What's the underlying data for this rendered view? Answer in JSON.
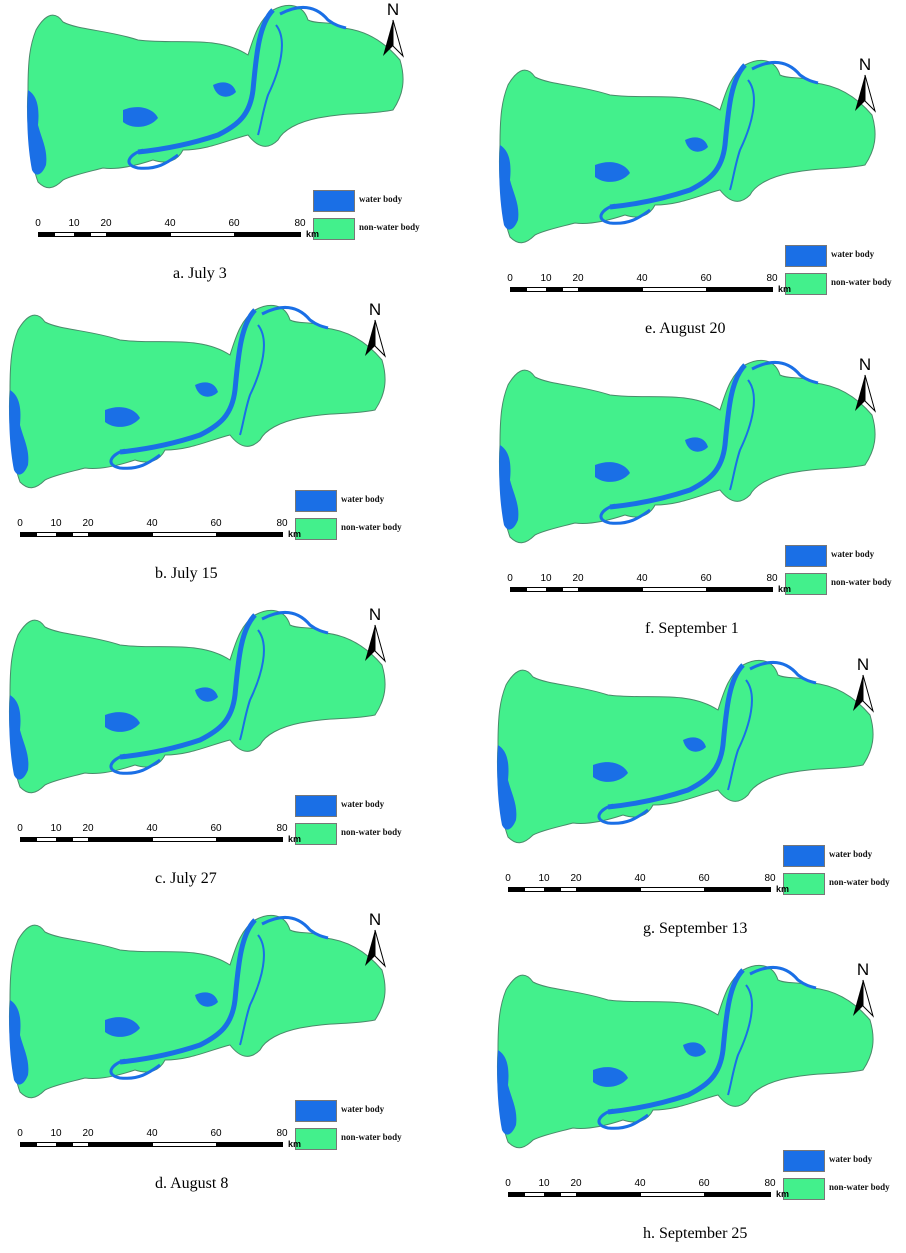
{
  "legend": {
    "water_label": "water body",
    "land_label": "non-water body"
  },
  "north_label": "N",
  "scale": {
    "ticks": [
      "0",
      "10",
      "20",
      "40",
      "60",
      "80"
    ],
    "unit": "km"
  },
  "colors": {
    "water": "#1a6fe6",
    "land": "#43f08c",
    "outline": "#4a8a6a"
  },
  "panels": [
    {
      "caption": "a. July 3"
    },
    {
      "caption": "b. July 15"
    },
    {
      "caption": "c. July 27"
    },
    {
      "caption": "d. August 8"
    },
    {
      "caption": "e. August 20"
    },
    {
      "caption": "f. September 1"
    },
    {
      "caption": "g. September 13"
    },
    {
      "caption": "h. September 25"
    }
  ]
}
